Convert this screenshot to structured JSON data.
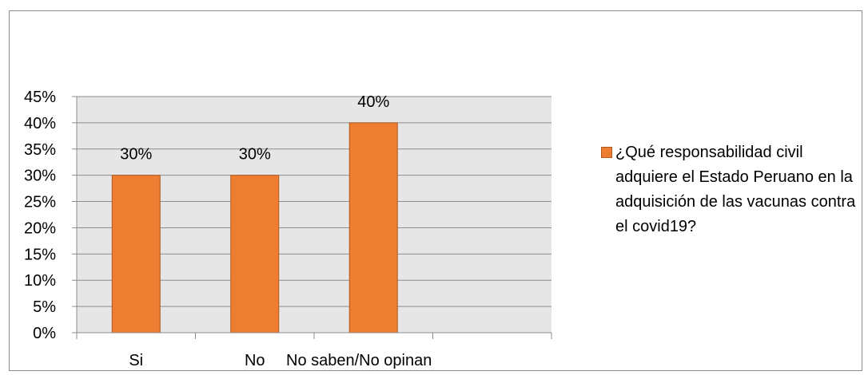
{
  "chart_data": {
    "type": "bar",
    "categories": [
      "Si",
      "No",
      "No saben/No opinan"
    ],
    "series": [
      {
        "name": "¿Qué responsabilidad civil adquiere el Estado Peruano en la adquisición de las vacunas contra el covid19?",
        "values": [
          30,
          30,
          40
        ]
      }
    ],
    "data_labels": [
      "30%",
      "30%",
      "40%"
    ],
    "y_tick_labels": [
      "0%",
      "5%",
      "10%",
      "15%",
      "20%",
      "25%",
      "30%",
      "35%",
      "40%",
      "45%"
    ],
    "ylim": [
      0,
      45
    ],
    "y_unit": "%",
    "grid": true,
    "legend_position": "right",
    "title": "",
    "xlabel": "",
    "ylabel": ""
  },
  "colors": {
    "bar": "#ED7D31",
    "bar_border": "#B15A1E",
    "plot_background": "#E6E6E6",
    "gridline": "#8C8C8C",
    "frame": "#8C8C8C"
  }
}
